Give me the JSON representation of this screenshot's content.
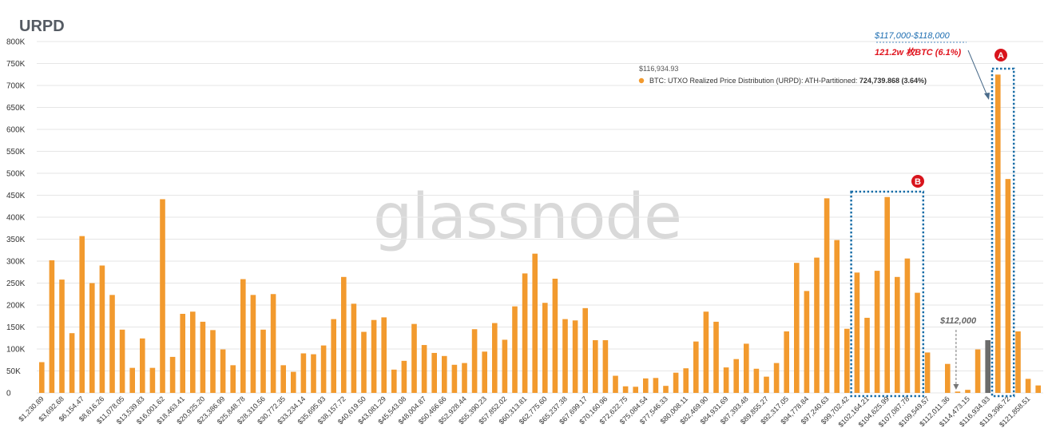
{
  "chart_data": {
    "type": "bar",
    "title": "URPD",
    "ylim": [
      0,
      800000
    ],
    "yticks": [
      {
        "v": 0,
        "label": "0"
      },
      {
        "v": 50000,
        "label": "50K"
      },
      {
        "v": 100000,
        "label": "100K"
      },
      {
        "v": 150000,
        "label": "150K"
      },
      {
        "v": 200000,
        "label": "200K"
      },
      {
        "v": 250000,
        "label": "250K"
      },
      {
        "v": 300000,
        "label": "300K"
      },
      {
        "v": 350000,
        "label": "350K"
      },
      {
        "v": 400000,
        "label": "400K"
      },
      {
        "v": 450000,
        "label": "450K"
      },
      {
        "v": 500000,
        "label": "500K"
      },
      {
        "v": 550000,
        "label": "550K"
      },
      {
        "v": 600000,
        "label": "600K"
      },
      {
        "v": 650000,
        "label": "650K"
      },
      {
        "v": 700000,
        "label": "700K"
      },
      {
        "v": 750000,
        "label": "750K"
      },
      {
        "v": 800000,
        "label": "800K"
      }
    ],
    "grid": true,
    "bar_color": "#f29a2e",
    "highlight_color": "#6b6b6b",
    "xtick_labels": [
      {
        "i": 0,
        "label": "$1,230.89"
      },
      {
        "i": 2,
        "label": "$3,692.68"
      },
      {
        "i": 4,
        "label": "$6,154.47"
      },
      {
        "i": 6,
        "label": "$8,616.26"
      },
      {
        "i": 8,
        "label": "$11,078.05"
      },
      {
        "i": 10,
        "label": "$13,539.83"
      },
      {
        "i": 12,
        "label": "$16,001.62"
      },
      {
        "i": 14,
        "label": "$18,463.41"
      },
      {
        "i": 16,
        "label": "$20,925.20"
      },
      {
        "i": 18,
        "label": "$23,386.99"
      },
      {
        "i": 20,
        "label": "$25,848.78"
      },
      {
        "i": 22,
        "label": "$28,310.56"
      },
      {
        "i": 24,
        "label": "$30,772.35"
      },
      {
        "i": 26,
        "label": "$33,234.14"
      },
      {
        "i": 28,
        "label": "$35,695.93"
      },
      {
        "i": 30,
        "label": "$38,157.72"
      },
      {
        "i": 32,
        "label": "$40,619.50"
      },
      {
        "i": 34,
        "label": "$43,081.29"
      },
      {
        "i": 36,
        "label": "$45,543.08"
      },
      {
        "i": 38,
        "label": "$48,004.87"
      },
      {
        "i": 40,
        "label": "$50,466.66"
      },
      {
        "i": 42,
        "label": "$52,928.44"
      },
      {
        "i": 44,
        "label": "$55,390.23"
      },
      {
        "i": 46,
        "label": "$57,852.02"
      },
      {
        "i": 48,
        "label": "$60,313.81"
      },
      {
        "i": 50,
        "label": "$62,775.60"
      },
      {
        "i": 52,
        "label": "$65,237.38"
      },
      {
        "i": 54,
        "label": "$67,699.17"
      },
      {
        "i": 56,
        "label": "$70,160.96"
      },
      {
        "i": 58,
        "label": "$72,622.75"
      },
      {
        "i": 60,
        "label": "$75,084.54"
      },
      {
        "i": 62,
        "label": "$77,546.33"
      },
      {
        "i": 64,
        "label": "$80,008.11"
      },
      {
        "i": 66,
        "label": "$82,469.90"
      },
      {
        "i": 68,
        "label": "$84,931.69"
      },
      {
        "i": 70,
        "label": "$87,393.48"
      },
      {
        "i": 72,
        "label": "$89,855.27"
      },
      {
        "i": 74,
        "label": "$92,317.05"
      },
      {
        "i": 76,
        "label": "$94,778.84"
      },
      {
        "i": 78,
        "label": "$97,240.63"
      },
      {
        "i": 80,
        "label": "$99,702.42"
      },
      {
        "i": 82,
        "label": "$102,164.21"
      },
      {
        "i": 84,
        "label": "$104,625.99"
      },
      {
        "i": 86,
        "label": "$107,087.78"
      },
      {
        "i": 88,
        "label": "$109,549.57"
      },
      {
        "i": 90,
        "label": "$112,011.36"
      },
      {
        "i": 92,
        "label": "$114,473.15"
      },
      {
        "i": 94,
        "label": "$116,934.93"
      },
      {
        "i": 96,
        "label": "$119,396.72"
      },
      {
        "i": 98,
        "label": "$121,858.51"
      }
    ],
    "values": [
      70000,
      302000,
      258000,
      136000,
      357000,
      250000,
      290000,
      223000,
      144000,
      57000,
      124000,
      57000,
      441000,
      82000,
      180000,
      185000,
      162000,
      143000,
      99000,
      63000,
      259000,
      223000,
      144000,
      225000,
      63000,
      48000,
      90000,
      88000,
      108000,
      168000,
      264000,
      203000,
      139000,
      166000,
      172000,
      53000,
      73000,
      157000,
      109000,
      91000,
      84000,
      64000,
      68000,
      145000,
      94000,
      159000,
      121000,
      197000,
      272000,
      317000,
      205000,
      260000,
      168000,
      165000,
      193000,
      120000,
      120000,
      39000,
      15000,
      14000,
      33000,
      34000,
      16000,
      46000,
      56000,
      117000,
      185000,
      162000,
      58000,
      77000,
      112000,
      55000,
      37000,
      68000,
      140000,
      296000,
      232000,
      308000,
      443000,
      348000,
      146000,
      274000,
      171000,
      278000,
      446000,
      264000,
      306000,
      228000,
      92000,
      0,
      66000,
      3000,
      7000,
      99000,
      120000,
      724740,
      487000,
      140000,
      32000,
      17000
    ],
    "highlight_index": 94,
    "tooltip": {
      "price": "$116,934.93",
      "series_text": "BTC: UTXO Realized Price Distribution (URPD): ATH-Partitioned:",
      "value_text": "724,739.868 (3.64%)",
      "bar_index": 95
    },
    "annotations": {
      "range_label": "$117,000-$118,000",
      "amount_label": "121.2w 枚BTC (6.1%)",
      "price_label": "$112,000",
      "box_a_label": "A",
      "box_b_label": "B",
      "box_a_bars": [
        95,
        96
      ],
      "box_b_bars": [
        81,
        87
      ],
      "arrow_target_bar": 91
    },
    "watermark": "glassnode",
    "annotation_colors": {
      "blue": "#1f6fb2",
      "red": "#e0141e",
      "box": "#1b6fa8"
    }
  }
}
